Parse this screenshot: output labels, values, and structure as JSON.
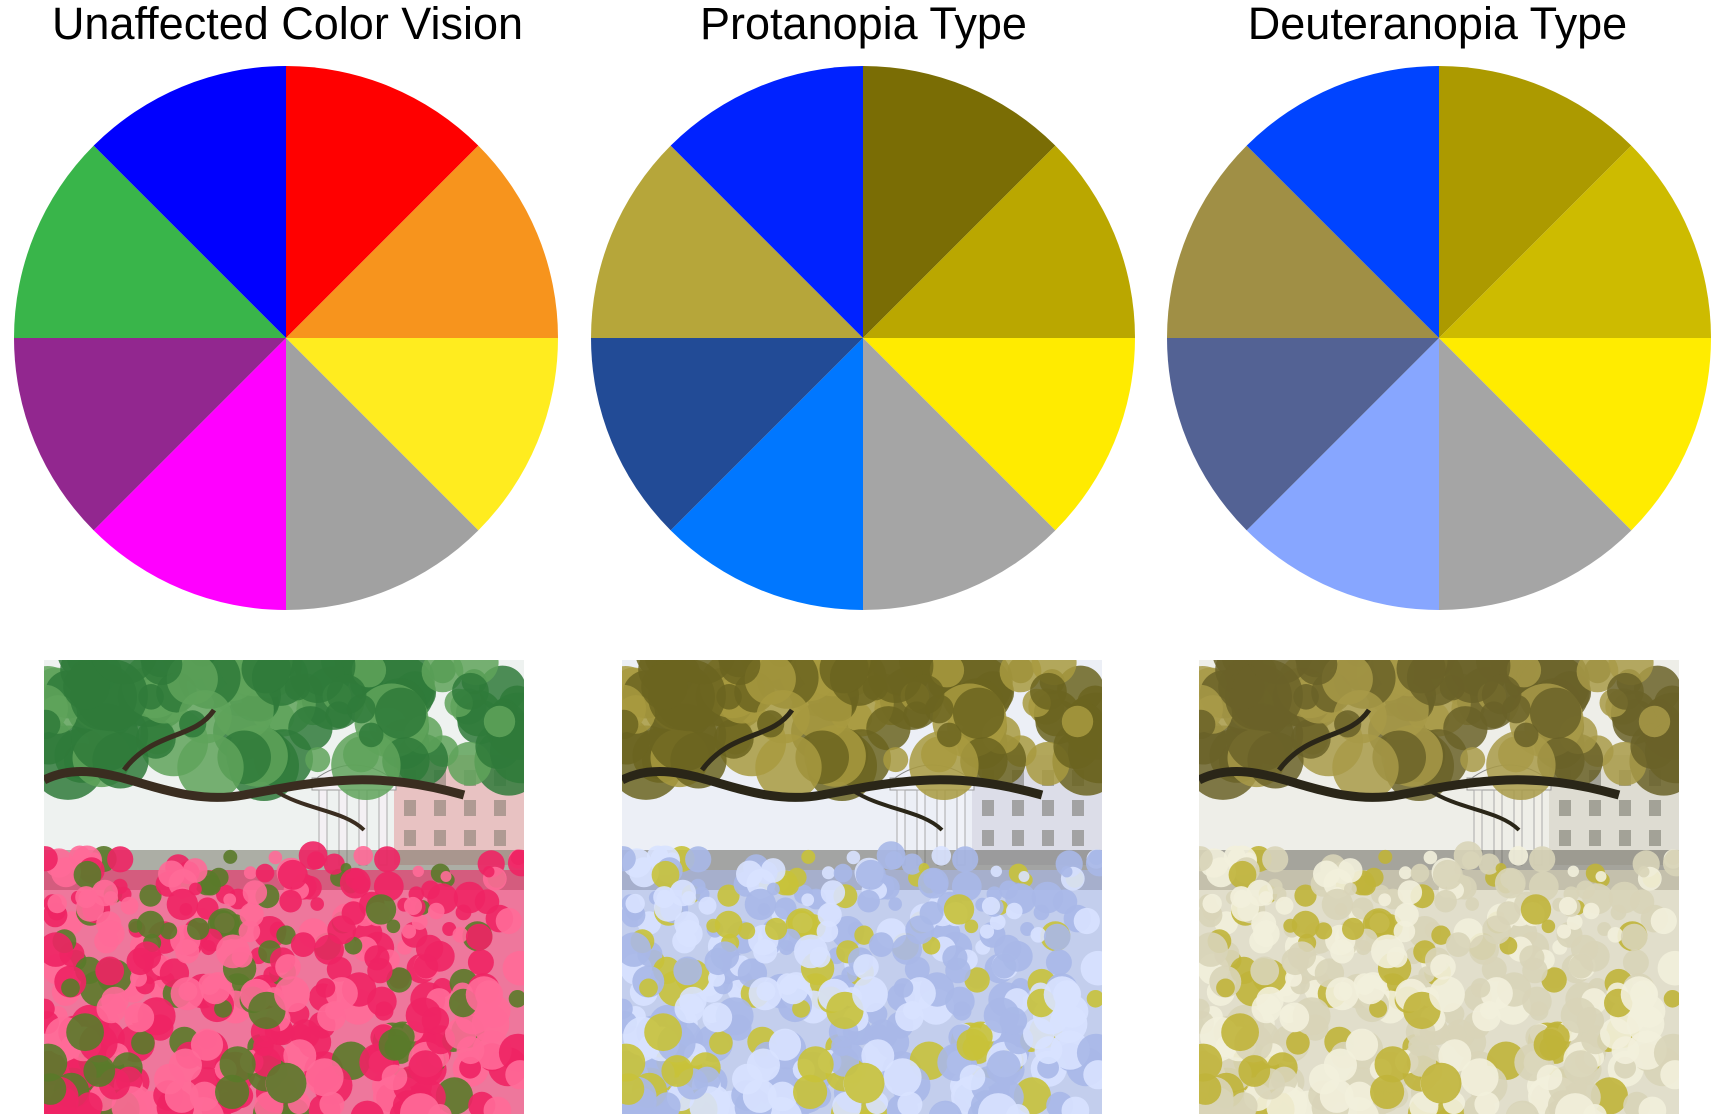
{
  "panels": [
    {
      "title": "Unaffected Color Vision",
      "wheel_colors": [
        "#ff0000",
        "#f7941d",
        "#ffec1f",
        "#a1a1a1",
        "#ff00ff",
        "#92278f",
        "#39b54a",
        "#0000ff"
      ],
      "photo": {
        "sky": "#eef2f0",
        "foliage": "#2f7a3a",
        "foliage_light": "#5fa35a",
        "branch": "#3a2d20",
        "building": "#e8c2c2",
        "gazebo": "#f4f0f4",
        "flowers": "#ee2464",
        "flowers_light": "#ff6a98",
        "leaf": "#5a7a2a",
        "ground": "#6a6a5a"
      }
    },
    {
      "title": "Protanopia Type",
      "wheel_colors": [
        "#7a6d05",
        "#baa700",
        "#ffeb00",
        "#a5a5a5",
        "#0077ff",
        "#224b96",
        "#b6a63a",
        "#0022ff"
      ],
      "photo": {
        "sky": "#eceff6",
        "foliage": "#6b6420",
        "foliage_light": "#a89a40",
        "branch": "#2a2618",
        "building": "#dcdde8",
        "gazebo": "#f0f2f8",
        "flowers": "#a8b8e8",
        "flowers_light": "#d8e2ff",
        "leaf": "#c8c23a",
        "ground": "#5a5a50"
      }
    },
    {
      "title": "Deuteranopia Type",
      "wheel_colors": [
        "#ac9a00",
        "#cdbb00",
        "#ffec00",
        "#a5a5a5",
        "#87a6ff",
        "#536294",
        "#a08f45",
        "#0044ff"
      ],
      "photo": {
        "sky": "#eeeee8",
        "foliage": "#6a6228",
        "foliage_light": "#a89a48",
        "branch": "#2a2618",
        "building": "#dedcd2",
        "gazebo": "#f0efe8",
        "flowers": "#d8d4b8",
        "flowers_light": "#f2f0dc",
        "leaf": "#c0b43a",
        "ground": "#5c5a50"
      }
    }
  ]
}
